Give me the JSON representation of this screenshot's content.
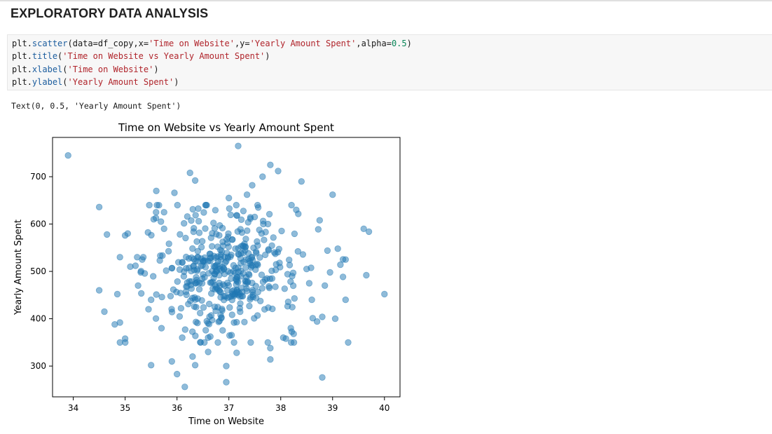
{
  "notebook": {
    "heading": "EXPLORATORY DATA ANALYSIS",
    "code_lines": [
      [
        {
          "t": "plt",
          "c": "name"
        },
        {
          "t": ".",
          "c": "op"
        },
        {
          "t": "scatter",
          "c": "fn"
        },
        {
          "t": "(data",
          "c": "name"
        },
        {
          "t": "=",
          "c": "op"
        },
        {
          "t": "df_copy,x",
          "c": "name"
        },
        {
          "t": "=",
          "c": "op"
        },
        {
          "t": "'Time on Website'",
          "c": "str"
        },
        {
          "t": ",y",
          "c": "name"
        },
        {
          "t": "=",
          "c": "op"
        },
        {
          "t": "'Yearly Amount Spent'",
          "c": "str"
        },
        {
          "t": ",alpha",
          "c": "name"
        },
        {
          "t": "=",
          "c": "op"
        },
        {
          "t": "0.5",
          "c": "num"
        },
        {
          "t": ")",
          "c": "name"
        }
      ],
      [
        {
          "t": "plt",
          "c": "name"
        },
        {
          "t": ".",
          "c": "op"
        },
        {
          "t": "title",
          "c": "fn"
        },
        {
          "t": "(",
          "c": "name"
        },
        {
          "t": "'Time on Website vs Yearly Amount Spent'",
          "c": "str"
        },
        {
          "t": ")",
          "c": "name"
        }
      ],
      [
        {
          "t": "plt",
          "c": "name"
        },
        {
          "t": ".",
          "c": "op"
        },
        {
          "t": "xlabel",
          "c": "fn"
        },
        {
          "t": "(",
          "c": "name"
        },
        {
          "t": "'Time on Website'",
          "c": "str"
        },
        {
          "t": ")",
          "c": "name"
        }
      ],
      [
        {
          "t": "plt",
          "c": "name"
        },
        {
          "t": ".",
          "c": "op"
        },
        {
          "t": "ylabel",
          "c": "fn"
        },
        {
          "t": "(",
          "c": "name"
        },
        {
          "t": "'Yearly Amount Spent'",
          "c": "str"
        },
        {
          "t": ")",
          "c": "name"
        }
      ]
    ],
    "output_text": "Text(0, 0.5, 'Yearly Amount Spent')"
  },
  "chart_data": {
    "type": "scatter",
    "title": "Time on Website vs Yearly Amount Spent",
    "xlabel": "Time on Website",
    "ylabel": "Yearly Amount Spent",
    "xlim": [
      33.6,
      40.3
    ],
    "ylim": [
      235,
      783
    ],
    "xticks": [
      34,
      35,
      36,
      37,
      38,
      39,
      40
    ],
    "yticks": [
      300,
      400,
      500,
      600,
      700
    ],
    "grid": false,
    "marker_color": "#1f77b4",
    "alpha": 0.5,
    "points_explicit": [
      [
        33.9,
        745
      ],
      [
        34.5,
        636
      ],
      [
        34.5,
        460
      ],
      [
        34.6,
        415
      ],
      [
        34.65,
        578
      ],
      [
        34.8,
        388
      ],
      [
        34.85,
        452
      ],
      [
        34.9,
        392
      ],
      [
        34.9,
        530
      ],
      [
        35.0,
        576
      ],
      [
        35.05,
        580
      ],
      [
        35.0,
        358
      ],
      [
        35.1,
        510
      ],
      [
        35.2,
        512
      ],
      [
        35.5,
        302
      ],
      [
        35.6,
        670
      ],
      [
        35.75,
        625
      ],
      [
        35.95,
        666
      ],
      [
        36.0,
        283
      ],
      [
        36.1,
        360
      ],
      [
        36.15,
        256
      ],
      [
        36.25,
        708
      ],
      [
        36.3,
        320
      ],
      [
        36.35,
        692
      ],
      [
        36.35,
        302
      ],
      [
        36.55,
        640
      ],
      [
        36.6,
        360
      ],
      [
        36.6,
        330
      ],
      [
        36.95,
        300
      ],
      [
        36.95,
        266
      ],
      [
        37.0,
        655
      ],
      [
        37.1,
        350
      ],
      [
        37.15,
        328
      ],
      [
        37.18,
        765
      ],
      [
        37.35,
        662
      ],
      [
        37.45,
        682
      ],
      [
        37.65,
        700
      ],
      [
        37.8,
        725
      ],
      [
        37.8,
        314
      ],
      [
        37.8,
        338
      ],
      [
        37.95,
        712
      ],
      [
        38.05,
        360
      ],
      [
        38.25,
        368
      ],
      [
        38.3,
        630
      ],
      [
        38.4,
        690
      ],
      [
        38.6,
        440
      ],
      [
        38.75,
        608
      ],
      [
        38.8,
        276
      ],
      [
        38.8,
        404
      ],
      [
        39.0,
        662
      ],
      [
        39.05,
        400
      ],
      [
        39.1,
        548
      ],
      [
        39.25,
        440
      ],
      [
        39.3,
        350
      ],
      [
        39.6,
        590
      ],
      [
        39.65,
        492
      ],
      [
        39.7,
        584
      ],
      [
        40.0,
        452
      ],
      [
        39.25,
        525
      ],
      [
        39.15,
        514
      ],
      [
        38.95,
        498
      ],
      [
        38.9,
        544
      ],
      [
        38.85,
        470
      ],
      [
        38.7,
        394
      ],
      [
        38.55,
        475
      ],
      [
        38.5,
        505
      ],
      [
        38.1,
        358
      ],
      [
        35.55,
        610
      ],
      [
        35.75,
        590
      ],
      [
        35.45,
        420
      ],
      [
        35.9,
        310
      ],
      [
        35.7,
        380
      ],
      [
        35.5,
        440
      ],
      [
        35.35,
        530
      ],
      [
        35.3,
        498
      ],
      [
        35.25,
        470
      ]
    ],
    "points_cluster": {
      "count": 430,
      "x_mean": 36.95,
      "x_sd": 0.72,
      "y_mean": 500,
      "y_sd": 66,
      "seed": 7
    }
  }
}
